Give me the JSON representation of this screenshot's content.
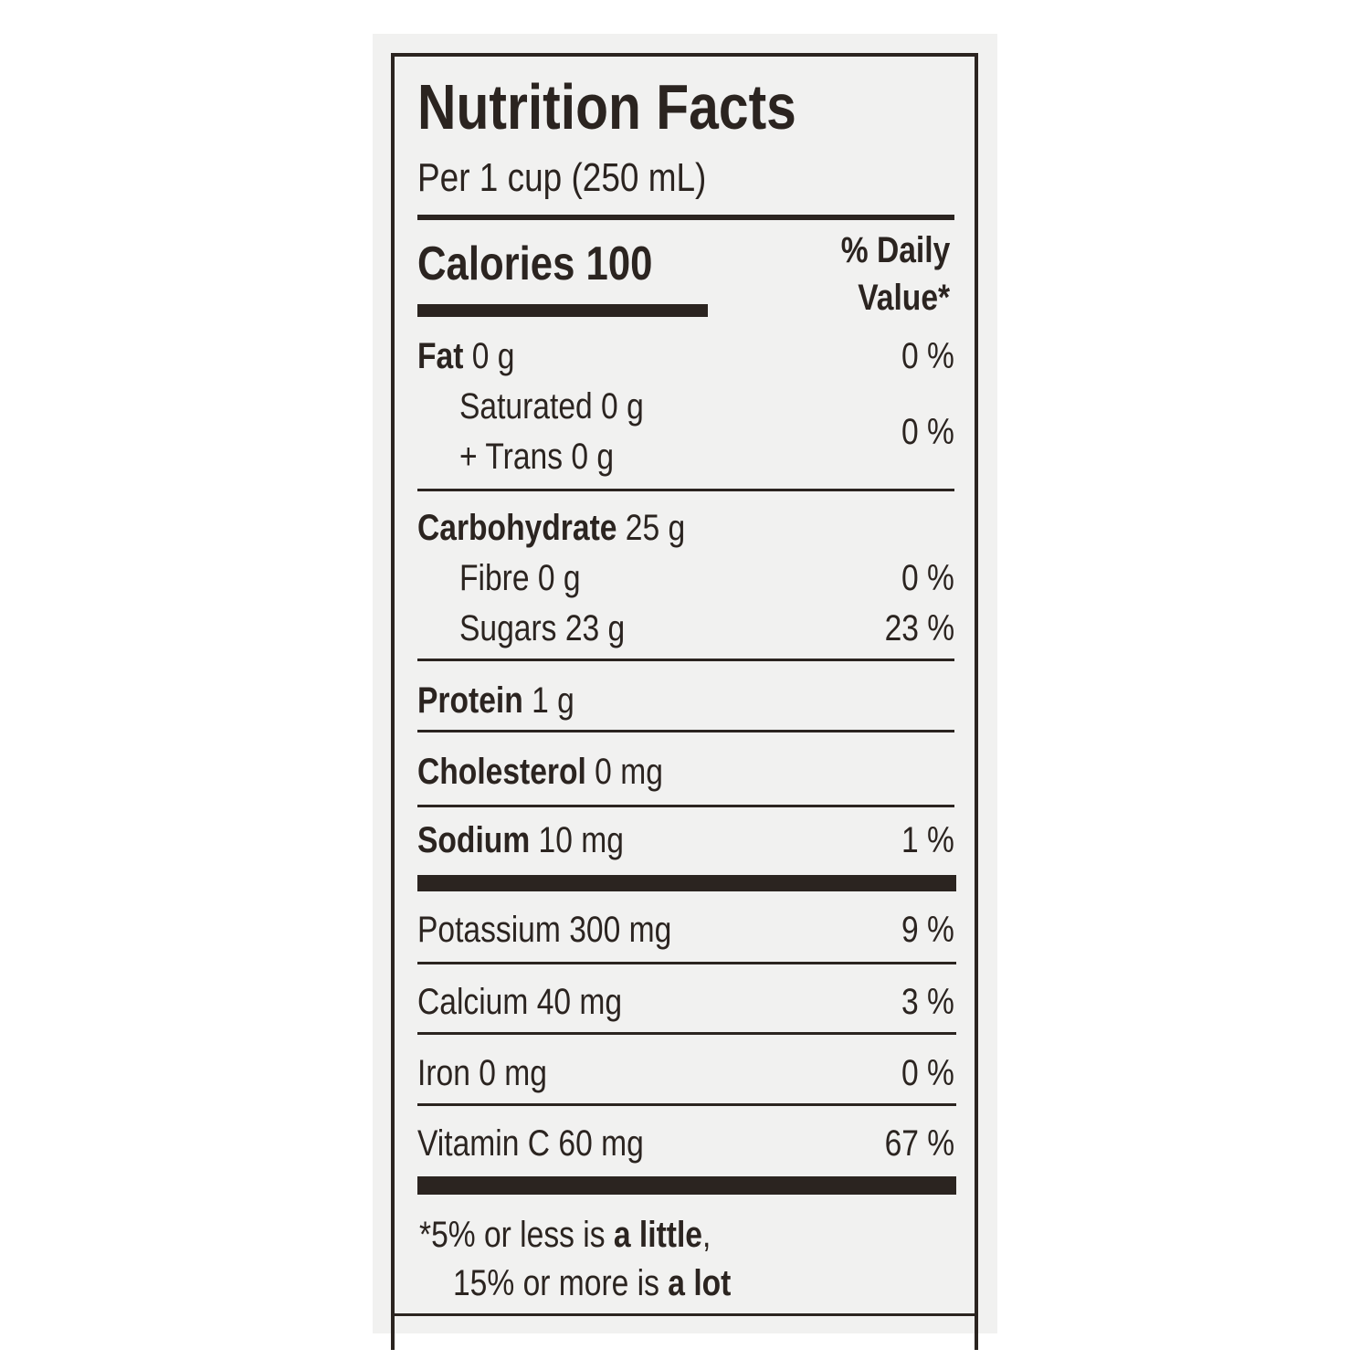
{
  "header": {
    "title": "Nutrition Facts",
    "serving": "Per 1 cup (250 mL)"
  },
  "calories": {
    "label": "Calories",
    "amount": "100"
  },
  "daily_value_header": [
    "% Daily",
    "Value*"
  ],
  "rows": [
    {
      "name": "Fat",
      "amount": "0 g",
      "dv": "0 %",
      "emphasis": true
    },
    {
      "group": [
        {
          "name": "Saturated",
          "amount": "0 g"
        },
        {
          "name": "+ Trans",
          "amount": "0 g"
        }
      ],
      "dv": "0 %"
    },
    {
      "name": "Carbohydrate",
      "amount": "25 g",
      "emphasis": true
    },
    {
      "name": "Fibre",
      "amount": "0 g",
      "dv": "0 %"
    },
    {
      "name": "Sugars",
      "amount": "23 g",
      "dv": "23 %"
    },
    {
      "name": "Protein",
      "amount": "1 g",
      "emphasis": true
    },
    {
      "name": "Cholesterol",
      "amount": "0 mg",
      "emphasis": true
    },
    {
      "name": "Sodium",
      "amount": "10 mg",
      "dv": "1 %",
      "emphasis": true
    },
    {
      "name": "Potassium",
      "amount": "300 mg",
      "dv": "9 %"
    },
    {
      "name": "Calcium",
      "amount": "40 mg",
      "dv": "3 %"
    },
    {
      "name": "Iron",
      "amount": "0 mg",
      "dv": "0 %"
    },
    {
      "name": "Vitamin C",
      "amount": "60 mg",
      "dv": "67 %"
    }
  ],
  "footnote": [
    [
      {
        "text": "*5% or less is "
      },
      {
        "text": "a little",
        "emphasis": true
      },
      {
        "text": ","
      }
    ],
    [
      {
        "text": "15% or more is "
      },
      {
        "text": "a lot",
        "emphasis": true
      }
    ]
  ]
}
